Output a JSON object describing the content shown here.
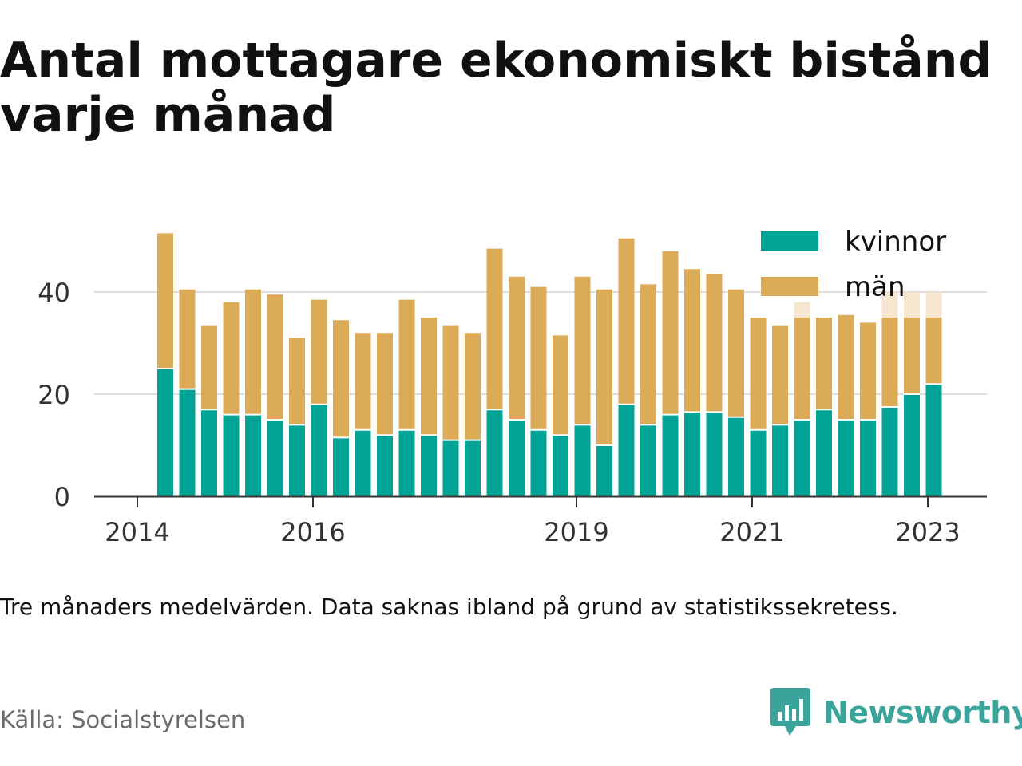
{
  "title": "Antal mottagare ekonomiskt bistånd varje månad",
  "note": "Tre månaders medelvärden. Data saknas ibland på grund av statistikssekretess.",
  "source": "Källa: Socialstyrelsen",
  "brand": "Newsworthy",
  "colors": {
    "kvinnor": "#00a396",
    "man": "#dbab57",
    "missing": "#f6e6d0",
    "grid": "#dddddd",
    "axis": "#333333",
    "brand": "#3aa39a"
  },
  "chart_data": {
    "type": "bar",
    "stacked": true,
    "title": "Antal mottagare ekonomiskt bistånd varje månad",
    "xlabel": "",
    "ylabel": "",
    "ylim": [
      0,
      55
    ],
    "yticks": [
      0,
      20,
      40
    ],
    "xticks": [
      "2014",
      "2016",
      "2019",
      "2021",
      "2023"
    ],
    "grid": "horizontal",
    "legend_position": "top-right",
    "series": [
      {
        "name": "kvinnor",
        "values": [
          25,
          21,
          17,
          16,
          16,
          15,
          14,
          18,
          11.5,
          13,
          12,
          13,
          12,
          11,
          11,
          17,
          15,
          13,
          12,
          14,
          10,
          18,
          14,
          16,
          16.5,
          16.5,
          15.5,
          13,
          14,
          15,
          17,
          15,
          15,
          17.5,
          20,
          22
        ]
      },
      {
        "name": "män",
        "values": [
          26.5,
          19.5,
          16.5,
          22,
          24.5,
          24.5,
          17,
          20.5,
          23,
          19,
          20,
          25.5,
          23,
          22.5,
          21,
          31.5,
          28,
          28,
          19.5,
          29,
          30.5,
          32.5,
          27.5,
          32,
          28,
          27,
          25,
          22,
          19.5,
          20,
          18,
          20.5,
          19,
          17.5,
          15,
          13
        ]
      }
    ],
    "missing_totals": [
      null,
      null,
      null,
      null,
      null,
      null,
      null,
      null,
      null,
      null,
      null,
      null,
      null,
      null,
      null,
      null,
      null,
      null,
      null,
      null,
      null,
      null,
      null,
      null,
      null,
      null,
      null,
      null,
      null,
      38,
      null,
      null,
      null,
      40,
      40,
      40
    ]
  }
}
